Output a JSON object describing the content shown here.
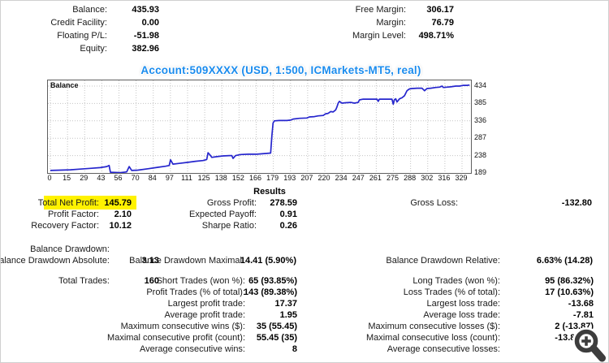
{
  "account_title": "Account:509XXXX (USD, 1:500, ICMarkets-MT5, real)",
  "account_summary": {
    "rows": [
      {
        "left": {
          "label": "Balance:",
          "value": "435.93"
        },
        "right": {
          "label": "Free Margin:",
          "value": "306.17"
        }
      },
      {
        "left": {
          "label": "Credit Facility:",
          "value": "0.00"
        },
        "right": {
          "label": "Margin:",
          "value": "76.79"
        }
      },
      {
        "left": {
          "label": "Floating P/L:",
          "value": "-51.98"
        },
        "right": {
          "label": "Margin Level:",
          "value": "498.71%"
        }
      },
      {
        "left": {
          "label": "Equity:",
          "value": "382.96"
        },
        "right": null
      }
    ]
  },
  "chart_data": {
    "type": "line",
    "title": "Balance",
    "legend_position": "top-left-inside",
    "grid": "dotted",
    "line_color": "#2525cd",
    "xlim": [
      0,
      335
    ],
    "ylim": [
      189,
      450
    ],
    "x_ticks": [
      0,
      15,
      29,
      43,
      56,
      70,
      84,
      97,
      111,
      125,
      138,
      152,
      166,
      179,
      193,
      207,
      220,
      234,
      247,
      261,
      275,
      288,
      302,
      316,
      329
    ],
    "y_ticks": [
      434,
      385,
      336,
      287,
      238,
      189
    ],
    "series": [
      {
        "name": "Balance",
        "points": [
          [
            0,
            196
          ],
          [
            8,
            197
          ],
          [
            16,
            198
          ],
          [
            24,
            200
          ],
          [
            32,
            202
          ],
          [
            40,
            204
          ],
          [
            45,
            207
          ],
          [
            47,
            210
          ],
          [
            48,
            191
          ],
          [
            56,
            190
          ],
          [
            61,
            192
          ],
          [
            63,
            207
          ],
          [
            65,
            196
          ],
          [
            70,
            197
          ],
          [
            78,
            201
          ],
          [
            86,
            205
          ],
          [
            92,
            208
          ],
          [
            95,
            210
          ],
          [
            96,
            226
          ],
          [
            98,
            214
          ],
          [
            103,
            216
          ],
          [
            110,
            219
          ],
          [
            116,
            222
          ],
          [
            122,
            224
          ],
          [
            125,
            227
          ],
          [
            126,
            246
          ],
          [
            128,
            238
          ],
          [
            129,
            233
          ],
          [
            133,
            235
          ],
          [
            138,
            237
          ],
          [
            143,
            238
          ],
          [
            145,
            238
          ],
          [
            146,
            230
          ],
          [
            148,
            238
          ],
          [
            152,
            241
          ],
          [
            158,
            242
          ],
          [
            165,
            242
          ],
          [
            172,
            244
          ],
          [
            176,
            245
          ],
          [
            177,
            293
          ],
          [
            178,
            330
          ],
          [
            179,
            336
          ],
          [
            183,
            337
          ],
          [
            189,
            337
          ],
          [
            192,
            338
          ],
          [
            194,
            341
          ],
          [
            199,
            343
          ],
          [
            205,
            344
          ],
          [
            207,
            347
          ],
          [
            211,
            348
          ],
          [
            214,
            350
          ],
          [
            218,
            351
          ],
          [
            220,
            356
          ],
          [
            222,
            357
          ],
          [
            224,
            362
          ],
          [
            226,
            361
          ],
          [
            228,
            367
          ],
          [
            229,
            375
          ],
          [
            230,
            386
          ],
          [
            231,
            391
          ],
          [
            233,
            386
          ],
          [
            236,
            387
          ],
          [
            240,
            388
          ],
          [
            243,
            386
          ],
          [
            246,
            388
          ],
          [
            247,
            395
          ],
          [
            250,
            397
          ],
          [
            256,
            397
          ],
          [
            261,
            397
          ],
          [
            262,
            391
          ],
          [
            263,
            397
          ],
          [
            269,
            397
          ],
          [
            273,
            397
          ],
          [
            274,
            383
          ],
          [
            275,
            396
          ],
          [
            276,
            398
          ],
          [
            277,
            389
          ],
          [
            279,
            398
          ],
          [
            281,
            401
          ],
          [
            283,
            407
          ],
          [
            284,
            414
          ],
          [
            285,
            421
          ],
          [
            287,
            426
          ],
          [
            289,
            427
          ],
          [
            293,
            428
          ],
          [
            297,
            428
          ],
          [
            299,
            421
          ],
          [
            301,
            427
          ],
          [
            304,
            428
          ],
          [
            308,
            430
          ],
          [
            311,
            431
          ],
          [
            313,
            434
          ],
          [
            314,
            430
          ],
          [
            317,
            431
          ],
          [
            320,
            432
          ],
          [
            324,
            434
          ],
          [
            327,
            434
          ],
          [
            330,
            436
          ],
          [
            333,
            436
          ],
          [
            335,
            437
          ]
        ]
      }
    ]
  },
  "results": {
    "header": "Results",
    "profit_rows": [
      {
        "left": {
          "label": "Total Net Profit:",
          "value": "145.79",
          "highlight": true
        },
        "mid": {
          "label": "Gross Profit:",
          "value": "278.59"
        },
        "right": {
          "label": "Gross Loss:",
          "value": "-132.80"
        }
      },
      {
        "left": {
          "label": "Profit Factor:",
          "value": "2.10"
        },
        "mid": {
          "label": "Expected Payoff:",
          "value": "0.91"
        },
        "right": null
      },
      {
        "left": {
          "label": "Recovery Factor:",
          "value": "10.12"
        },
        "mid": {
          "label": "Sharpe Ratio:",
          "value": "0.26"
        },
        "right": null
      }
    ],
    "drawdown_rows": [
      {
        "left": {
          "label": "Balance Drawdown:",
          "value": ""
        },
        "mid": null,
        "right": null
      },
      {
        "left": {
          "label": "Balance Drawdown Absolute:",
          "value": "3.13"
        },
        "mid": {
          "label": "Balance Drawdown Maximal:",
          "value": "14.41 (5.90%)"
        },
        "right": {
          "label": "Balance Drawdown Relative:",
          "value": "6.63% (14.28)"
        }
      }
    ],
    "trades_rows": [
      {
        "left": {
          "label": "Total Trades:",
          "value": "160"
        },
        "mid": {
          "label": "Short Trades (won %):",
          "value": "65 (93.85%)"
        },
        "right": {
          "label": "Long Trades (won %):",
          "value": "95 (86.32%)"
        }
      },
      {
        "left": null,
        "mid": {
          "label": "Profit Trades (% of total):",
          "value": "143 (89.38%)"
        },
        "right": {
          "label": "Loss Trades (% of total):",
          "value": "17 (10.63%)"
        }
      },
      {
        "left": null,
        "mid": {
          "label": "Largest profit trade:",
          "value": "17.37"
        },
        "right": {
          "label": "Largest loss trade:",
          "value": "-13.68"
        }
      },
      {
        "left": null,
        "mid": {
          "label": "Average profit trade:",
          "value": "1.95"
        },
        "right": {
          "label": "Average loss trade:",
          "value": "-7.81"
        }
      },
      {
        "left": null,
        "mid": {
          "label": "Maximum consecutive wins ($):",
          "value": "35 (55.45)"
        },
        "right": {
          "label": "Maximum consecutive losses ($):",
          "value": "2 (-13.87)"
        }
      },
      {
        "left": null,
        "mid": {
          "label": "Maximal consecutive profit (count):",
          "value": "55.45 (35)"
        },
        "right": {
          "label": "Maximal consecutive loss (count):",
          "value": "-13.87 (2)"
        }
      },
      {
        "left": null,
        "mid": {
          "label": "Average consecutive wins:",
          "value": "8"
        },
        "right": {
          "label": "Average consecutive losses:",
          "value": "2"
        }
      }
    ]
  },
  "colors": {
    "highlight": "#fff200",
    "title_blue": "#1b8cee",
    "chart_line": "#2525cd",
    "grid": "#c4c4c4"
  },
  "icons": {
    "zoom_button": "magnifier-plus"
  }
}
